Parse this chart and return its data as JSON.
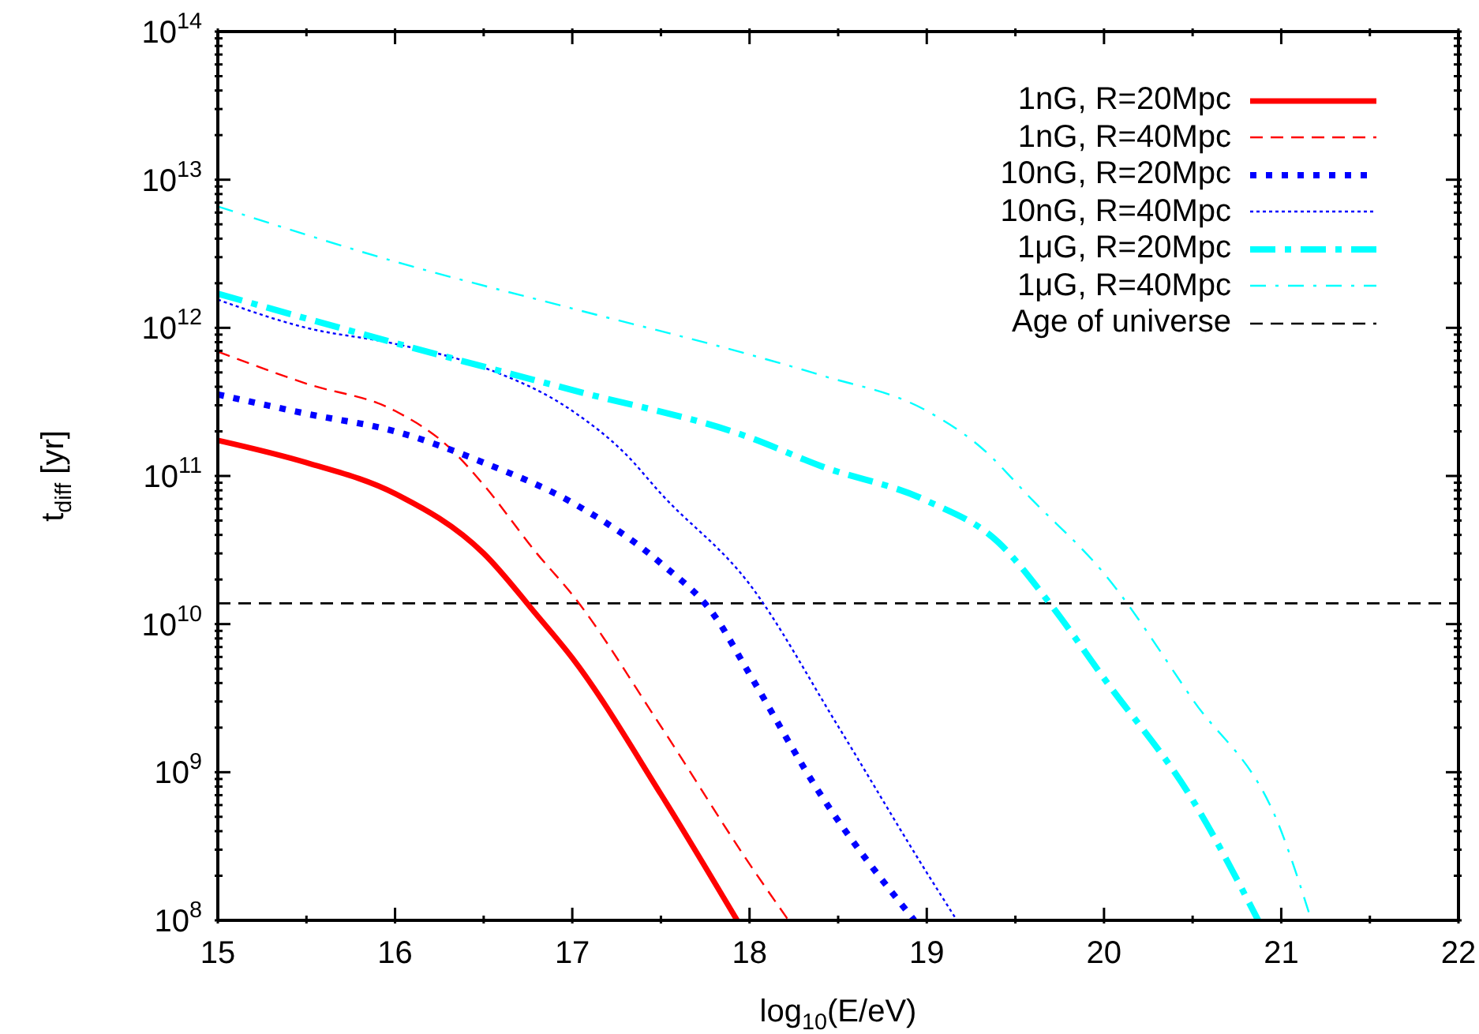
{
  "chart_data": {
    "type": "line",
    "xlabel": "log$_{10}$(E/eV)",
    "ylabel": "t$_{diff}$ [yr]",
    "log": "y",
    "grid": false,
    "legend": "top right",
    "xlim": [
      15,
      22
    ],
    "ylim": [
      100000000.0,
      100000000000000.0
    ],
    "xticks": [
      15,
      {
        "value": 15.5,
        "label": null
      },
      16,
      {
        "value": 16.5,
        "label": null
      },
      17,
      {
        "value": 17.5,
        "label": null
      },
      18,
      {
        "value": 18.5,
        "label": null
      },
      19,
      {
        "value": 19.5,
        "label": null
      },
      20,
      {
        "value": 20.5,
        "label": null
      },
      21,
      {
        "value": 21.5,
        "label": null
      },
      22
    ],
    "yticks": [
      {
        "value": 100000000.0,
        "label": "10$^{8}$"
      },
      {
        "value": 200000000.0,
        "label": null
      },
      {
        "value": 300000000.0,
        "label": null
      },
      {
        "value": 400000000.0,
        "label": null
      },
      {
        "value": 500000000.0,
        "label": null
      },
      {
        "value": 600000000.0,
        "label": null
      },
      {
        "value": 700000000.0,
        "label": null
      },
      {
        "value": 800000000.0,
        "label": null
      },
      {
        "value": 900000000.0,
        "label": null
      },
      {
        "value": 1000000000.0,
        "label": "10$^{9}$"
      },
      {
        "value": 2000000000.0,
        "label": null
      },
      {
        "value": 3000000000.0,
        "label": null
      },
      {
        "value": 4000000000.0,
        "label": null
      },
      {
        "value": 5000000000.0,
        "label": null
      },
      {
        "value": 6000000000.0,
        "label": null
      },
      {
        "value": 7000000000.0,
        "label": null
      },
      {
        "value": 8000000000.0,
        "label": null
      },
      {
        "value": 9000000000.0,
        "label": null
      },
      {
        "value": 10000000000.0,
        "label": "10$^{10}$"
      },
      {
        "value": 20000000000.0,
        "label": null
      },
      {
        "value": 30000000000.0,
        "label": null
      },
      {
        "value": 40000000000.0,
        "label": null
      },
      {
        "value": 50000000000.0,
        "label": null
      },
      {
        "value": 60000000000.0,
        "label": null
      },
      {
        "value": 70000000000.0,
        "label": null
      },
      {
        "value": 80000000000.0,
        "label": null
      },
      {
        "value": 90000000000.0,
        "label": null
      },
      {
        "value": 100000000000.0,
        "label": "10$^{11}$"
      },
      {
        "value": 200000000000.0,
        "label": null
      },
      {
        "value": 300000000000.0,
        "label": null
      },
      {
        "value": 400000000000.0,
        "label": null
      },
      {
        "value": 500000000000.0,
        "label": null
      },
      {
        "value": 600000000000.0,
        "label": null
      },
      {
        "value": 700000000000.0,
        "label": null
      },
      {
        "value": 800000000000.0,
        "label": null
      },
      {
        "value": 900000000000.0,
        "label": null
      },
      {
        "value": 1000000000000.0,
        "label": "10$^{12}$"
      },
      {
        "value": 2000000000000.0,
        "label": null
      },
      {
        "value": 3000000000000.0,
        "label": null
      },
      {
        "value": 4000000000000.0,
        "label": null
      },
      {
        "value": 5000000000000.0,
        "label": null
      },
      {
        "value": 6000000000000.0,
        "label": null
      },
      {
        "value": 7000000000000.0,
        "label": null
      },
      {
        "value": 8000000000000.0,
        "label": null
      },
      {
        "value": 9000000000000.0,
        "label": null
      },
      {
        "value": 10000000000000.0,
        "label": "10$^{13}$"
      },
      {
        "value": 20000000000000.0,
        "label": null
      },
      {
        "value": 30000000000000.0,
        "label": null
      },
      {
        "value": 40000000000000.0,
        "label": null
      },
      {
        "value": 50000000000000.0,
        "label": null
      },
      {
        "value": 60000000000000.0,
        "label": null
      },
      {
        "value": 70000000000000.0,
        "label": null
      },
      {
        "value": 80000000000000.0,
        "label": null
      },
      {
        "value": 90000000000000.0,
        "label": null
      },
      {
        "value": 100000000000000.0,
        "label": "10$^{14}$"
      }
    ],
    "series": [
      {
        "name": "1nG, R=20Mpc",
        "color": "#ff0000",
        "line_style": "solid",
        "x": [
          15,
          15.5,
          16,
          16.5,
          16.8,
          17,
          17.5,
          17.93
        ],
        "values": [
          174000000000.0,
          123000000000.0,
          76000000000.0,
          30000000000.0,
          11500000000.0,
          5900000000.0,
          710000000.0,
          100000000.0
        ]
      },
      {
        "name": "1nG, R=40Mpc",
        "color": "#ff0000",
        "line_style": "dashed",
        "x": [
          15,
          15.5,
          16,
          16.3,
          16.5,
          16.8,
          17,
          17.5,
          18,
          18.22
        ],
        "values": [
          690000000000.0,
          420000000000.0,
          275000000000.0,
          158000000000.0,
          87000000000.0,
          30000000000.0,
          15800000000.0,
          2040000000.0,
          240000000.0,
          100000000.0
        ]
      },
      {
        "name": "10nG, R=20Mpc",
        "color": "#0000ff",
        "line_style": "dotted",
        "x": [
          15,
          15.5,
          16,
          16.5,
          17,
          17.5,
          17.8,
          18,
          18.4,
          18.93
        ],
        "values": [
          355000000000.0,
          263000000000.0,
          200000000000.0,
          123000000000.0,
          66000000000.0,
          25700000000.0,
          11500000000.0,
          4600000000.0,
          710000000.0,
          100000000.0
        ]
      },
      {
        "name": "10nG, R=40Mpc",
        "color": "#0000ff",
        "line_style": "dotted",
        "x": [
          15,
          15.5,
          16,
          16.5,
          17,
          17.3,
          17.5,
          18,
          18.5,
          19,
          19.17
        ],
        "values": [
          1550000000000.0,
          1000000000000.0,
          780000000000.0,
          540000000000.0,
          275000000000.0,
          141000000000.0,
          76000000000.0,
          18600000000.0,
          2040000000.0,
          210000000.0,
          100000000.0
        ]
      },
      {
        "name": "1μG, R=20Mpc",
        "color": "#00ffff",
        "line_style": "dashdot",
        "x": [
          15,
          16,
          17,
          18,
          18.4,
          19,
          19.4,
          19.7,
          20,
          20.5,
          20.87
        ],
        "values": [
          1700000000000.0,
          790000000000.0,
          380000000000.0,
          182000000000.0,
          117000000000.0,
          68000000000.0,
          36000000000.0,
          13500000000.0,
          4300000000.0,
          650000000.0,
          100000000.0
        ]
      },
      {
        "name": "1μG, R=40Mpc",
        "color": "#00ffff",
        "line_style": "dashdot",
        "x": [
          15,
          16,
          17,
          18,
          18.4,
          19,
          19.3,
          19.6,
          20,
          20.5,
          21,
          21.17
        ],
        "values": [
          6600000000000.0,
          2800000000000.0,
          1350000000000.0,
          660000000000.0,
          480000000000.0,
          275000000000.0,
          158000000000.0,
          68000000000.0,
          22000000000.0,
          3100000000.0,
          400000000.0,
          100000000.0
        ]
      }
    ],
    "ref_lines": [
      {
        "axis": "y",
        "value": 13800000000.0,
        "label": "Age of universe",
        "color": "#000000",
        "line_style": "dashed"
      }
    ]
  }
}
